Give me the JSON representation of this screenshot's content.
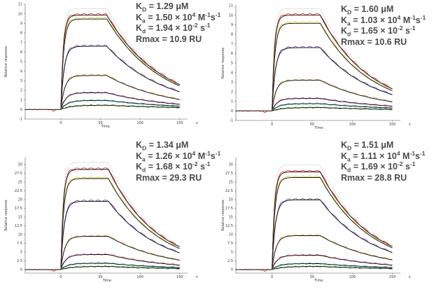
{
  "chart_data": [
    {
      "type": "line",
      "xlabel": "Time",
      "ylabel": "Relative response",
      "x_unit": "s",
      "xlim": [
        -45,
        160
      ],
      "ylim": [
        -1,
        11
      ],
      "x_ticks": [
        "0",
        "50",
        "100",
        "150"
      ],
      "y_ticks": [
        "-1",
        "0",
        "1",
        "2",
        "3",
        "4",
        "5",
        "6",
        "7",
        "8",
        "9",
        "10",
        "11"
      ],
      "params": {
        "kd_label_sub": "D",
        "kd_value": "1.29 μM",
        "ka_label_sub": "a",
        "ka_value": "1.50 × 10",
        "ka_exp": "4",
        "ka_unit": " M",
        "ka_unit_exp1": "-1",
        "ka_unit_s": "s",
        "ka_unit_exp2": "-1",
        "koff_label_sub": "d",
        "koff_value": "1.94 × 10",
        "koff_exp": "-2",
        "koff_unit": " s",
        "koff_unit_exp": "-1",
        "rmax": "Rmax = 10.9 RU"
      },
      "injection_end": 58,
      "series_plateaus": [
        9.85,
        9.45,
        6.6,
        3.55,
        1.75,
        0.95,
        0.45
      ],
      "series_end_values": [
        2.6,
        2.45,
        1.85,
        1.05,
        0.55,
        0.35,
        0.2
      ]
    },
    {
      "type": "line",
      "xlabel": "Time",
      "ylabel": "Relative response",
      "x_unit": "s",
      "xlim": [
        -45,
        160
      ],
      "ylim": [
        -1,
        11
      ],
      "x_ticks": [
        "0",
        "50",
        "100",
        "150"
      ],
      "y_ticks": [
        "-1",
        "0",
        "1",
        "2",
        "3",
        "4",
        "5",
        "6",
        "7",
        "8",
        "9",
        "10",
        "11"
      ],
      "params": {
        "kd_label_sub": "D",
        "kd_value": "1.60 μM",
        "ka_label_sub": "a",
        "ka_value": "1.03 × 10",
        "ka_exp": "4",
        "ka_unit": " M",
        "ka_unit_exp1": "-1",
        "ka_unit_s": "s",
        "ka_unit_exp2": "-1",
        "koff_label_sub": "d",
        "koff_value": "1.65 × 10",
        "koff_exp": "-2",
        "koff_unit": " s",
        "koff_unit_exp": "-1",
        "rmax": "Rmax = 10.6 RU"
      },
      "injection_end": 60,
      "series_plateaus": [
        10.0,
        9.15,
        6.6,
        3.2,
        1.3,
        0.75,
        0.35
      ],
      "series_end_values": [
        2.3,
        2.1,
        1.7,
        0.95,
        0.5,
        0.3,
        0.15
      ]
    },
    {
      "type": "line",
      "xlabel": "Time",
      "ylabel": "Relative response",
      "x_unit": "s",
      "xlim": [
        -45,
        160
      ],
      "ylim": [
        -1,
        32
      ],
      "x_ticks": [
        "0",
        "50",
        "100",
        "150"
      ],
      "y_ticks": [
        "0",
        "2.5",
        "5",
        "7.5",
        "10",
        "12.5",
        "15",
        "17.5",
        "20",
        "22.5",
        "25",
        "27.5",
        "30"
      ],
      "params": {
        "kd_label_sub": "D",
        "kd_value": "1.34 μM",
        "ka_label_sub": "a",
        "ka_value": "1.26 × 10",
        "ka_exp": "4",
        "ka_unit": " M",
        "ka_unit_exp1": "-1",
        "ka_unit_s": "s",
        "ka_unit_exp2": "-1",
        "koff_label_sub": "d",
        "koff_value": "1.68 × 10",
        "koff_exp": "-2",
        "koff_unit": " s",
        "koff_unit_exp": "-1",
        "rmax": "Rmax = 29.3 RU"
      },
      "injection_end": 60,
      "series_plateaus": [
        28.6,
        26.0,
        19.5,
        9.5,
        4.3,
        1.8,
        0.9
      ],
      "series_end_values": [
        6.5,
        6.0,
        4.8,
        2.7,
        1.3,
        0.6,
        0.3
      ]
    },
    {
      "type": "line",
      "xlabel": "Time",
      "ylabel": "Relative response",
      "x_unit": "s",
      "xlim": [
        -45,
        160
      ],
      "ylim": [
        -1,
        32
      ],
      "x_ticks": [
        "0",
        "50",
        "100",
        "150"
      ],
      "y_ticks": [
        "0",
        "2.5",
        "5",
        "7.5",
        "10",
        "12.5",
        "15",
        "17.5",
        "20",
        "22.5",
        "25",
        "27.5",
        "30"
      ],
      "params": {
        "kd_label_sub": "D",
        "kd_value": "1.51 μM",
        "ka_label_sub": "a",
        "ka_value": "1.11 × 10",
        "ka_exp": "4",
        "ka_unit": " M",
        "ka_unit_exp1": "-1",
        "ka_unit_s": "s",
        "ka_unit_exp2": "-1",
        "koff_label_sub": "d",
        "koff_value": "1.69 × 10",
        "koff_exp": "-2",
        "koff_unit": " s",
        "koff_unit_exp": "-1",
        "rmax": "Rmax = 28.8 RU"
      },
      "injection_end": 60,
      "series_plateaus": [
        27.9,
        26.3,
        19.9,
        9.7,
        4.1,
        1.7,
        0.9
      ],
      "series_end_values": [
        6.6,
        6.2,
        4.9,
        2.8,
        1.3,
        0.6,
        0.3
      ]
    }
  ],
  "colors": {
    "fit": "#111111",
    "sensorgram": [
      "#e8352e",
      "#cfcf2e",
      "#7a4fb8",
      "#d6a84a",
      "#ec5fa8",
      "#37c3c2",
      "#6fae35"
    ],
    "reference": "#bdbdbd"
  }
}
